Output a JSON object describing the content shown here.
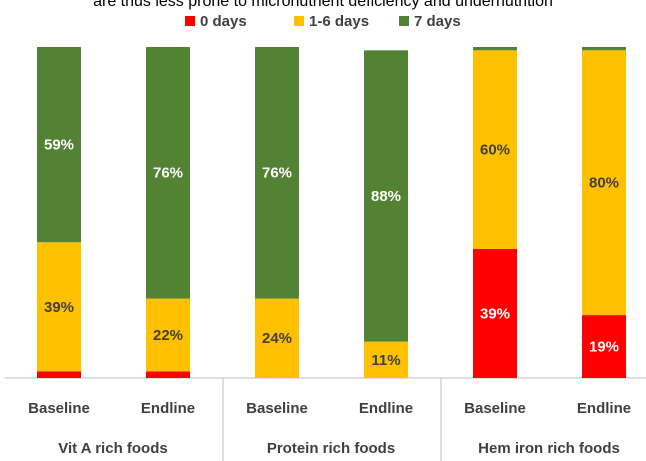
{
  "chart_data": {
    "type": "stacked_bar",
    "title": "are thus less prone to micronutrient deficiency and undernutrition",
    "categories": [
      "Baseline",
      "Endline",
      "Baseline",
      "Endline",
      "Baseline",
      "Endline"
    ],
    "groups": [
      "Vit A rich foods",
      "Protein rich foods",
      "Hem iron rich foods"
    ],
    "series": [
      {
        "name": "0 days",
        "color": "#ff0000",
        "label_color": "#ffffff",
        "values": [
          2,
          2,
          0,
          0,
          39,
          19
        ],
        "value_labels": [
          null,
          null,
          null,
          null,
          "39%",
          "19%"
        ]
      },
      {
        "name": "1-6 days",
        "color": "#ffc000",
        "label_color": "#404040",
        "values": [
          39,
          22,
          24,
          11,
          60,
          80
        ],
        "value_labels": [
          "39%",
          "22%",
          "24%",
          "11%",
          "60%",
          "80%"
        ]
      },
      {
        "name": "7 days",
        "color": "#548235",
        "label_color": "#ffffff",
        "values": [
          59,
          76,
          76,
          88,
          1,
          1
        ],
        "value_labels": [
          "59%",
          "76%",
          "76%",
          "88%",
          null,
          null
        ]
      }
    ],
    "ylim": [
      0,
      100
    ],
    "legend": "top"
  }
}
